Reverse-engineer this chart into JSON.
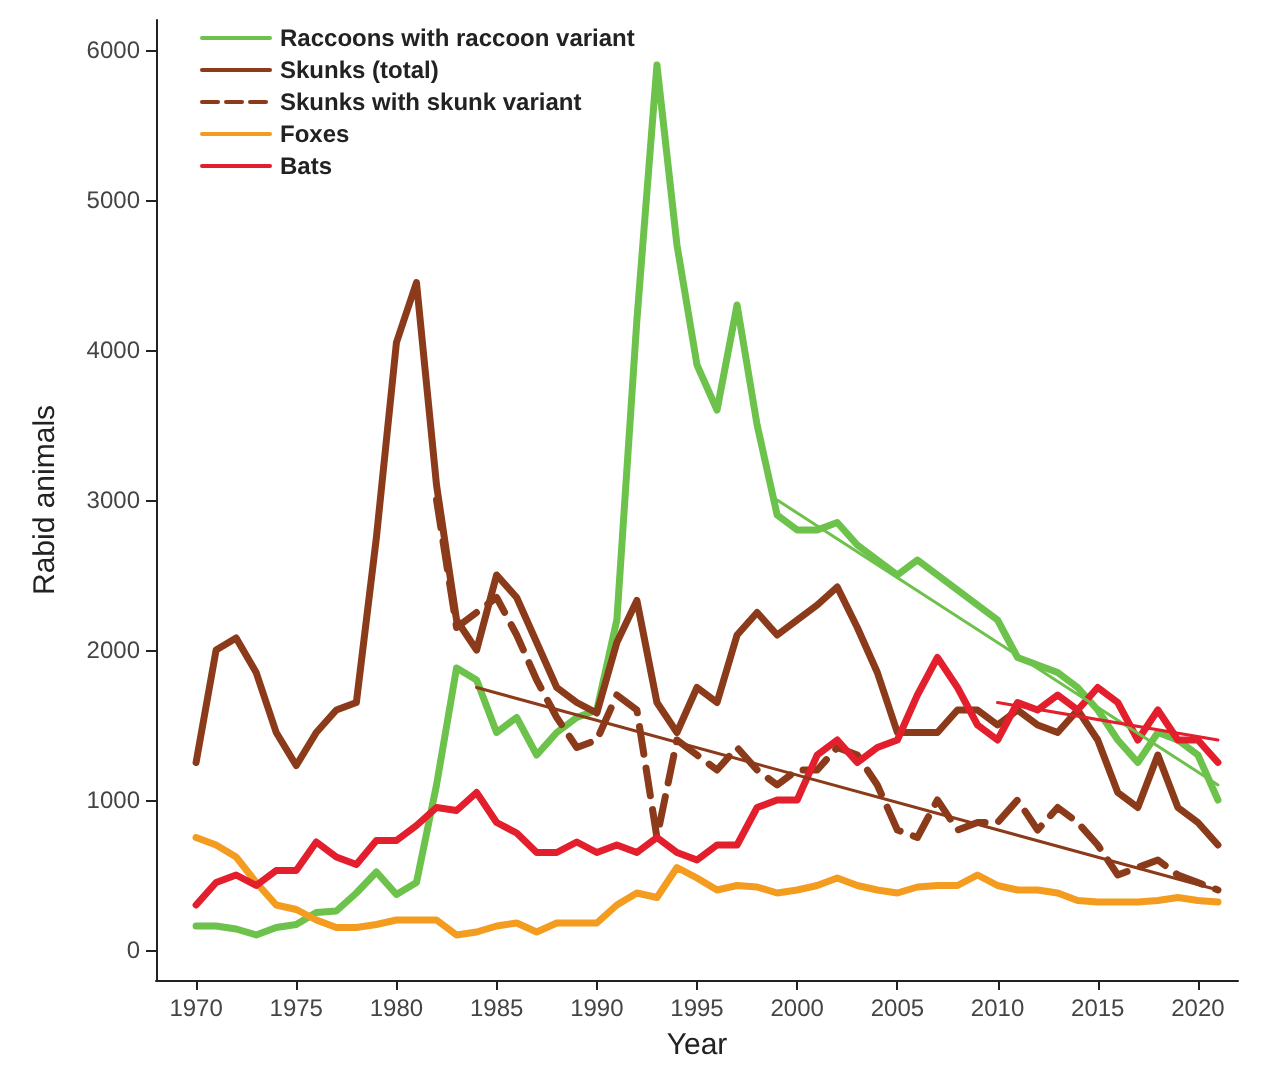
{
  "chart_data": {
    "type": "line",
    "xlabel": "Year",
    "ylabel": "Rabid animals",
    "x": [
      1970,
      1971,
      1972,
      1973,
      1974,
      1975,
      1976,
      1977,
      1978,
      1979,
      1980,
      1981,
      1982,
      1983,
      1984,
      1985,
      1986,
      1987,
      1988,
      1989,
      1990,
      1991,
      1992,
      1993,
      1994,
      1995,
      1996,
      1997,
      1998,
      1999,
      2000,
      2001,
      2002,
      2003,
      2004,
      2005,
      2006,
      2007,
      2008,
      2009,
      2010,
      2011,
      2012,
      2013,
      2014,
      2015,
      2016,
      2017,
      2018,
      2019,
      2020,
      2021
    ],
    "series": [
      {
        "name": "Raccoons with raccoon variant",
        "color": "#6cc24a",
        "values": [
          160,
          160,
          140,
          100,
          150,
          170,
          250,
          260,
          380,
          520,
          370,
          450,
          1100,
          1880,
          1800,
          1450,
          1550,
          1300,
          1450,
          1550,
          1600,
          2200,
          4200,
          5900,
          4700,
          3900,
          3600,
          4300,
          3500,
          2900,
          2800,
          2800,
          2850,
          2700,
          2600,
          2500,
          2600,
          2500,
          2400,
          2300,
          2200,
          1950,
          1900,
          1850,
          1750,
          1600,
          1400,
          1250,
          1450,
          1400,
          1300,
          1000
        ]
      },
      {
        "name": "Skunks (total)",
        "color": "#8b3a1a",
        "values": [
          1250,
          2000,
          2080,
          1850,
          1450,
          1230,
          1450,
          1600,
          1650,
          2750,
          4050,
          4450,
          3100,
          2200,
          2000,
          2500,
          2350,
          2050,
          1750,
          1650,
          1580,
          2050,
          2330,
          1650,
          1450,
          1750,
          1650,
          2100,
          2250,
          2100,
          2200,
          2300,
          2420,
          2150,
          1850,
          1450,
          1450,
          1450,
          1600,
          1600,
          1500,
          1600,
          1500,
          1450,
          1600,
          1400,
          1050,
          950,
          1300,
          950,
          850,
          700
        ]
      },
      {
        "name": "Skunks with skunk variant",
        "color": "#8b3a1a",
        "line_style": "dashed",
        "values": [
          null,
          null,
          null,
          null,
          null,
          null,
          null,
          null,
          null,
          null,
          null,
          null,
          3000,
          2150,
          2250,
          2350,
          2100,
          1800,
          1550,
          1350,
          1400,
          1700,
          1600,
          750,
          1400,
          1300,
          1200,
          1350,
          1200,
          1100,
          1200,
          1200,
          1350,
          1300,
          1100,
          800,
          750,
          1000,
          800,
          850,
          850,
          1000,
          800,
          950,
          850,
          700,
          500,
          550,
          600,
          500,
          450,
          400
        ]
      },
      {
        "name": "Foxes",
        "color": "#f39c1f",
        "values": [
          750,
          700,
          620,
          450,
          300,
          270,
          200,
          150,
          150,
          170,
          200,
          200,
          200,
          100,
          120,
          160,
          180,
          120,
          180,
          180,
          180,
          300,
          380,
          350,
          550,
          480,
          400,
          430,
          420,
          380,
          400,
          430,
          480,
          430,
          400,
          380,
          420,
          430,
          430,
          500,
          430,
          400,
          400,
          380,
          330,
          320,
          320,
          320,
          330,
          350,
          330,
          320
        ]
      },
      {
        "name": "Bats",
        "color": "#e31e2d",
        "values": [
          300,
          450,
          500,
          430,
          530,
          530,
          720,
          620,
          570,
          730,
          730,
          830,
          950,
          930,
          1050,
          850,
          780,
          650,
          650,
          720,
          650,
          700,
          650,
          750,
          650,
          600,
          700,
          700,
          950,
          1000,
          1000,
          1300,
          1400,
          1250,
          1350,
          1400,
          1700,
          1950,
          1750,
          1500,
          1400,
          1650,
          1600,
          1700,
          1600,
          1750,
          1650,
          1400,
          1600,
          1400,
          1400,
          1250
        ]
      },
      {
        "type": "line",
        "color": "#6cc24a",
        "x": [
          1999,
          2021
        ],
        "values": [
          3000,
          1100
        ]
      },
      {
        "type": "line",
        "color": "#8b3a1a",
        "x": [
          1984,
          2021
        ],
        "values": [
          1750,
          400
        ]
      },
      {
        "type": "line",
        "color": "#e31e2d",
        "x": [
          2010,
          2021
        ],
        "values": [
          1650,
          1400
        ]
      }
    ],
    "xlim": [
      1968,
      2022
    ],
    "xticks": [
      1970,
      1975,
      1980,
      1985,
      1990,
      1995,
      2000,
      2005,
      2010,
      2015,
      2020
    ],
    "ylim": [
      -200,
      6200
    ],
    "yticks": [
      0,
      1000,
      2000,
      3000,
      4000,
      5000,
      6000
    ],
    "legend": "top left",
    "grid": false,
    "marker": "none"
  }
}
